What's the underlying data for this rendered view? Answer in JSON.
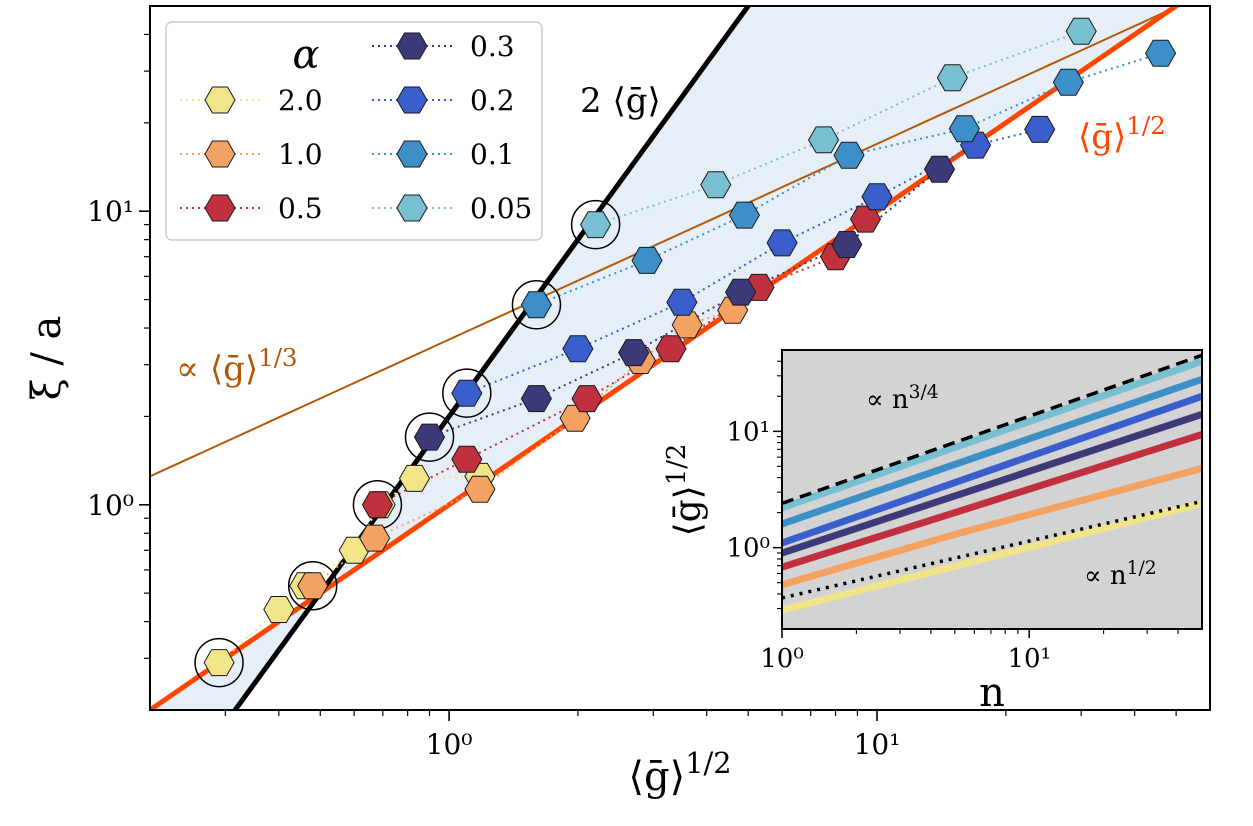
{
  "chart_data": [
    {
      "type": "scatter",
      "scale": "log-log",
      "xlabel": "⟨ḡ⟩^1/2",
      "ylabel": "ξ / a",
      "xlim": [
        0.2,
        60
      ],
      "ylim": [
        0.2,
        50
      ],
      "x_ticks": [
        {
          "value": 1,
          "label": "10⁰"
        },
        {
          "value": 10,
          "label": "10¹"
        }
      ],
      "y_ticks": [
        {
          "value": 1,
          "label": "10⁰"
        },
        {
          "value": 10,
          "label": "10¹"
        }
      ],
      "legend": {
        "title": "α",
        "position": "top-left"
      },
      "reference_lines": [
        {
          "label": "2 ⟨ḡ⟩",
          "color": "#000000",
          "relation": "y = 2x^2"
        },
        {
          "label": "⟨ḡ⟩^1/2",
          "color": "#ff4500",
          "relation": "y = x"
        },
        {
          "label": "∝ ⟨ḡ⟩^1/3",
          "color": "#b35806",
          "relation": "y ∝ x^(2/3)"
        }
      ],
      "series": [
        {
          "name": "2.0",
          "color": "#f1e58a",
          "x": [
            0.29,
            0.4,
            0.46,
            0.6,
            0.69,
            0.83,
            1.18
          ],
          "y": [
            0.29,
            0.44,
            0.53,
            0.7,
            1.0,
            1.23,
            1.25
          ]
        },
        {
          "name": "1.0",
          "color": "#f4a261",
          "x": [
            0.48,
            0.67,
            1.18,
            1.97,
            2.8,
            3.6,
            4.6
          ],
          "y": [
            0.53,
            0.77,
            1.13,
            1.97,
            3.1,
            4.1,
            4.6
          ]
        },
        {
          "name": "0.5",
          "color": "#c0303f",
          "x": [
            0.68,
            1.1,
            2.1,
            3.3,
            5.3,
            8.0,
            9.4
          ],
          "y": [
            1.0,
            1.43,
            2.3,
            3.4,
            5.5,
            7.0,
            9.4
          ]
        },
        {
          "name": "0.3",
          "color": "#3d3a7a",
          "x": [
            0.9,
            1.6,
            2.7,
            4.8,
            8.5,
            14.0
          ],
          "y": [
            1.7,
            2.3,
            3.3,
            5.3,
            7.7,
            13.9
          ]
        },
        {
          "name": "0.2",
          "color": "#3a5fcd",
          "x": [
            1.1,
            2.0,
            3.5,
            6.0,
            10.0,
            17.0,
            24.0
          ],
          "y": [
            2.4,
            3.4,
            4.9,
            7.8,
            11.2,
            16.8,
            19.0
          ]
        },
        {
          "name": "0.1",
          "color": "#3d8fc7",
          "x": [
            1.6,
            2.9,
            4.9,
            8.6,
            16.0,
            28.0,
            46.0
          ],
          "y": [
            4.8,
            6.8,
            9.7,
            15.5,
            19.1,
            27.5,
            34.5
          ]
        },
        {
          "name": "0.05",
          "color": "#79bfd2",
          "x": [
            2.2,
            4.2,
            7.5,
            15.0,
            30.0
          ],
          "y": [
            9.0,
            12.3,
            17.5,
            28.5,
            41.0
          ]
        }
      ],
      "annotations": [
        {
          "text": "2 ⟨ḡ⟩",
          "color": "#000000"
        },
        {
          "text": "⟨ḡ⟩^1/2",
          "color": "#ff4500"
        },
        {
          "text": "∝ ⟨ḡ⟩^1/3",
          "color": "#b35806"
        }
      ]
    },
    {
      "type": "line",
      "scale": "log-log",
      "xlabel": "n",
      "ylabel": "⟨ḡ⟩^1/2",
      "xlim": [
        1,
        50
      ],
      "ylim": [
        0.2,
        50
      ],
      "x_ticks": [
        {
          "value": 1,
          "label": "10⁰"
        },
        {
          "value": 10,
          "label": "10¹"
        }
      ],
      "y_ticks": [
        {
          "value": 1,
          "label": "10⁰"
        },
        {
          "value": 10,
          "label": "10¹"
        }
      ],
      "background": "#d3d3d3",
      "reference_lines": [
        {
          "label": "∝ n^3/4",
          "style": "dashed",
          "color": "#000000",
          "points": [
            [
              1,
              2.4
            ],
            [
              50,
              45
            ]
          ]
        },
        {
          "label": "∝ n^1/2",
          "style": "dotted",
          "color": "#000000",
          "points": [
            [
              1,
              0.37
            ],
            [
              50,
              2.5
            ]
          ]
        }
      ],
      "series": [
        {
          "name": "0.05",
          "color": "#79bfd2",
          "x": [
            1,
            50
          ],
          "y": [
            2.2,
            40
          ]
        },
        {
          "name": "0.1",
          "color": "#3d8fc7",
          "x": [
            1,
            50
          ],
          "y": [
            1.6,
            28
          ]
        },
        {
          "name": "0.2",
          "color": "#3a5fcd",
          "x": [
            1,
            50
          ],
          "y": [
            1.1,
            20
          ]
        },
        {
          "name": "0.3",
          "color": "#3d3a7a",
          "x": [
            1,
            50
          ],
          "y": [
            0.9,
            14
          ]
        },
        {
          "name": "0.5",
          "color": "#c0303f",
          "x": [
            1,
            50
          ],
          "y": [
            0.68,
            9.4
          ]
        },
        {
          "name": "1.0",
          "color": "#f4a261",
          "x": [
            1,
            5,
            50
          ],
          "y": [
            0.48,
            1.3,
            4.8
          ]
        },
        {
          "name": "2.0",
          "color": "#f1e58a",
          "x": [
            1,
            50
          ],
          "y": [
            0.29,
            2.4
          ]
        }
      ],
      "annotations": [
        {
          "text": "∝ n^3/4",
          "color": "#000000"
        },
        {
          "text": "∝ n^1/2",
          "color": "#000000"
        }
      ]
    }
  ]
}
